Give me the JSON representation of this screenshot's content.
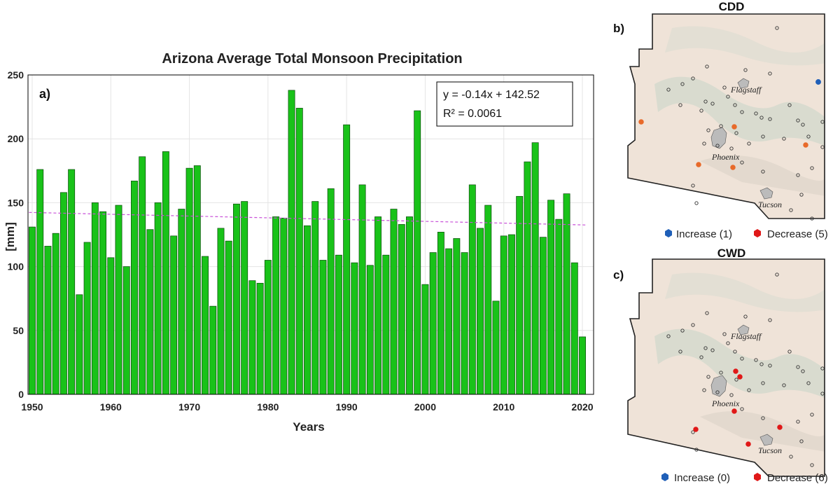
{
  "chart_data": [
    {
      "type": "bar",
      "panel_label": "a)",
      "title": "Arizona Average Total Monsoon Precipitation",
      "xlabel": "Years",
      "ylabel": "[mm]",
      "ylim": [
        0,
        250
      ],
      "xlim": [
        1950,
        2020
      ],
      "xticks": [
        "1950",
        "1960",
        "1970",
        "1980",
        "1990",
        "2000",
        "2010",
        "2020"
      ],
      "yticks": [
        "0",
        "50",
        "100",
        "150",
        "200",
        "250"
      ],
      "grid": true,
      "bar_color": "#19c219",
      "trend_color": "#c850d8",
      "equation": "y = -0.14x + 142.52",
      "r_squared": "R² = 0.0061",
      "trend": {
        "slope": -0.14,
        "intercept": 142.52
      },
      "categories": [
        1950,
        1951,
        1952,
        1953,
        1954,
        1955,
        1956,
        1957,
        1958,
        1959,
        1960,
        1961,
        1962,
        1963,
        1964,
        1965,
        1966,
        1967,
        1968,
        1969,
        1970,
        1971,
        1972,
        1973,
        1974,
        1975,
        1976,
        1977,
        1978,
        1979,
        1980,
        1981,
        1982,
        1983,
        1984,
        1985,
        1986,
        1987,
        1988,
        1989,
        1990,
        1991,
        1992,
        1993,
        1994,
        1995,
        1996,
        1997,
        1998,
        1999,
        2000,
        2001,
        2002,
        2003,
        2004,
        2005,
        2006,
        2007,
        2008,
        2009,
        2010,
        2011,
        2012,
        2013,
        2014,
        2015,
        2016,
        2017,
        2018,
        2019,
        2020
      ],
      "values": [
        131,
        176,
        116,
        126,
        158,
        176,
        78,
        119,
        150,
        143,
        107,
        148,
        100,
        167,
        186,
        129,
        150,
        190,
        124,
        145,
        177,
        179,
        108,
        69,
        130,
        120,
        149,
        151,
        89,
        87,
        105,
        139,
        138,
        238,
        224,
        132,
        151,
        105,
        161,
        109,
        211,
        103,
        164,
        101,
        139,
        109,
        145,
        133,
        139,
        222,
        86,
        111,
        127,
        114,
        122,
        111,
        164,
        130,
        148,
        73,
        124,
        125,
        155,
        182,
        197,
        123,
        152,
        137,
        157,
        103,
        45
      ]
    },
    {
      "type": "map",
      "panel_label": "b)",
      "title": "CDD",
      "legend": [
        {
          "label": "Increase (1)",
          "color": "#1f5fb8"
        },
        {
          "label": "Decrease (5)",
          "color": "#e01818"
        }
      ]
    },
    {
      "type": "map",
      "panel_label": "c)",
      "title": "CWD",
      "legend": [
        {
          "label": "Increase (0)",
          "color": "#1f5fb8"
        },
        {
          "label": "Decrease (6)",
          "color": "#e01818"
        }
      ]
    }
  ],
  "maps": {
    "cities": [
      "Flagstaff",
      "Phoenix",
      "Tucson"
    ],
    "land_color": "#efe3d8",
    "terrain_color": "#c9d6c9",
    "open_station_color": "#333333",
    "cdd_marker_color": "#e86a2a",
    "cwd_marker_color": "#e01818"
  }
}
